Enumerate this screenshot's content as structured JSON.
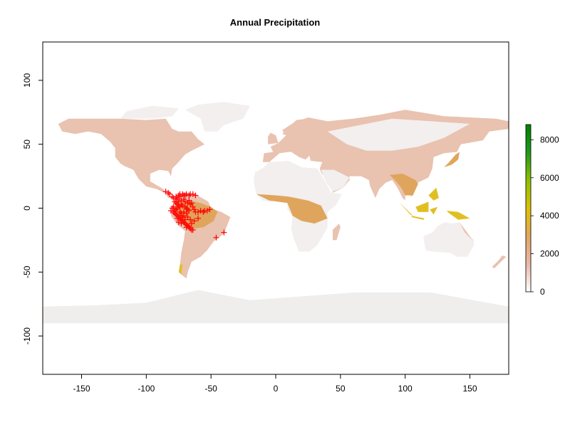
{
  "title": "Annual Precipitation",
  "map": {
    "projection": "longitude-latitude",
    "xlim": [
      -180,
      180
    ],
    "ylim": [
      -130,
      130
    ],
    "raster_extent": {
      "lon": [
        -180,
        180
      ],
      "lat": [
        -90,
        70
      ]
    },
    "x_ticks": [
      -150,
      -100,
      -50,
      0,
      50,
      100,
      150
    ],
    "y_ticks": [
      -100,
      -50,
      0,
      50,
      100
    ],
    "background_color": "#ffffff",
    "ocean_color": "#ffffff",
    "land_low_color": "#f2efee",
    "land_mid_color": "#e9c2b0",
    "land_wet_color": "#e0a55c",
    "land_verywet_color": "#e0c020",
    "antarctica_color": "#f0eeed"
  },
  "legend": {
    "ticks": [
      0,
      2000,
      4000,
      6000,
      8000
    ],
    "max": 8800,
    "placement": "right",
    "colors": [
      "#ffffff",
      "#e8b9a8",
      "#e3a65e",
      "#dcc100",
      "#8cc000",
      "#1e9a1e",
      "#008000"
    ]
  },
  "points": {
    "marker": "+",
    "color": "#ff0000",
    "coords": [
      [
        -85,
        13
      ],
      [
        -83,
        12
      ],
      [
        -82,
        11
      ],
      [
        -80,
        9
      ],
      [
        -79,
        8
      ],
      [
        -77,
        8
      ],
      [
        -76,
        7
      ],
      [
        -75,
        10
      ],
      [
        -74,
        11
      ],
      [
        -72,
        11
      ],
      [
        -71,
        10
      ],
      [
        -69,
        11
      ],
      [
        -67,
        10
      ],
      [
        -66,
        11
      ],
      [
        -64,
        11
      ],
      [
        -62,
        10
      ],
      [
        -78,
        5
      ],
      [
        -77,
        4
      ],
      [
        -76,
        3
      ],
      [
        -75,
        2
      ],
      [
        -74,
        1
      ],
      [
        -76,
        0
      ],
      [
        -77,
        -1
      ],
      [
        -78,
        -2
      ],
      [
        -79,
        -3
      ],
      [
        -78,
        -4
      ],
      [
        -77,
        -5
      ],
      [
        -76,
        -6
      ],
      [
        -75,
        -7
      ],
      [
        -74,
        -8
      ],
      [
        -73,
        -9
      ],
      [
        -72,
        -10
      ],
      [
        -71,
        -11
      ],
      [
        -70,
        -12
      ],
      [
        -69,
        -13
      ],
      [
        -68,
        -14
      ],
      [
        -67,
        -15
      ],
      [
        -66,
        -16
      ],
      [
        -65,
        -17
      ],
      [
        -64,
        -17
      ],
      [
        -72,
        2
      ],
      [
        -70,
        1
      ],
      [
        -69,
        0
      ],
      [
        -68,
        -1
      ],
      [
        -67,
        -2
      ],
      [
        -66,
        3
      ],
      [
        -65,
        4
      ],
      [
        -64,
        1
      ],
      [
        -63,
        -1
      ],
      [
        -62,
        -3
      ],
      [
        -60,
        -3
      ],
      [
        -58,
        -2
      ],
      [
        -56,
        -3
      ],
      [
        -55,
        -2
      ],
      [
        -53,
        -2
      ],
      [
        -51,
        -1
      ],
      [
        -73,
        6
      ],
      [
        -71,
        7
      ],
      [
        -70,
        5
      ],
      [
        -68,
        4
      ],
      [
        -67,
        6
      ],
      [
        -69,
        -4
      ],
      [
        -71,
        -3
      ],
      [
        -73,
        -4
      ],
      [
        -74,
        -3
      ],
      [
        -76,
        -8
      ],
      [
        -75,
        -11
      ],
      [
        -73,
        -12
      ],
      [
        -70,
        -9
      ],
      [
        -68,
        -7
      ],
      [
        -66,
        -9
      ],
      [
        -63,
        -10
      ],
      [
        -65,
        -12
      ],
      [
        -67,
        -14
      ],
      [
        -69,
        -15
      ],
      [
        -60,
        -8
      ],
      [
        -80,
        0
      ],
      [
        -81,
        -2
      ],
      [
        -79,
        1
      ],
      [
        -75,
        5
      ],
      [
        -73,
        3
      ],
      [
        -71,
        -6
      ],
      [
        -72,
        -7
      ],
      [
        -74,
        -6
      ],
      [
        -46,
        -23
      ],
      [
        -40,
        -19
      ],
      [
        -77,
        9
      ],
      [
        -74,
        9
      ],
      [
        -70,
        10
      ]
    ]
  }
}
